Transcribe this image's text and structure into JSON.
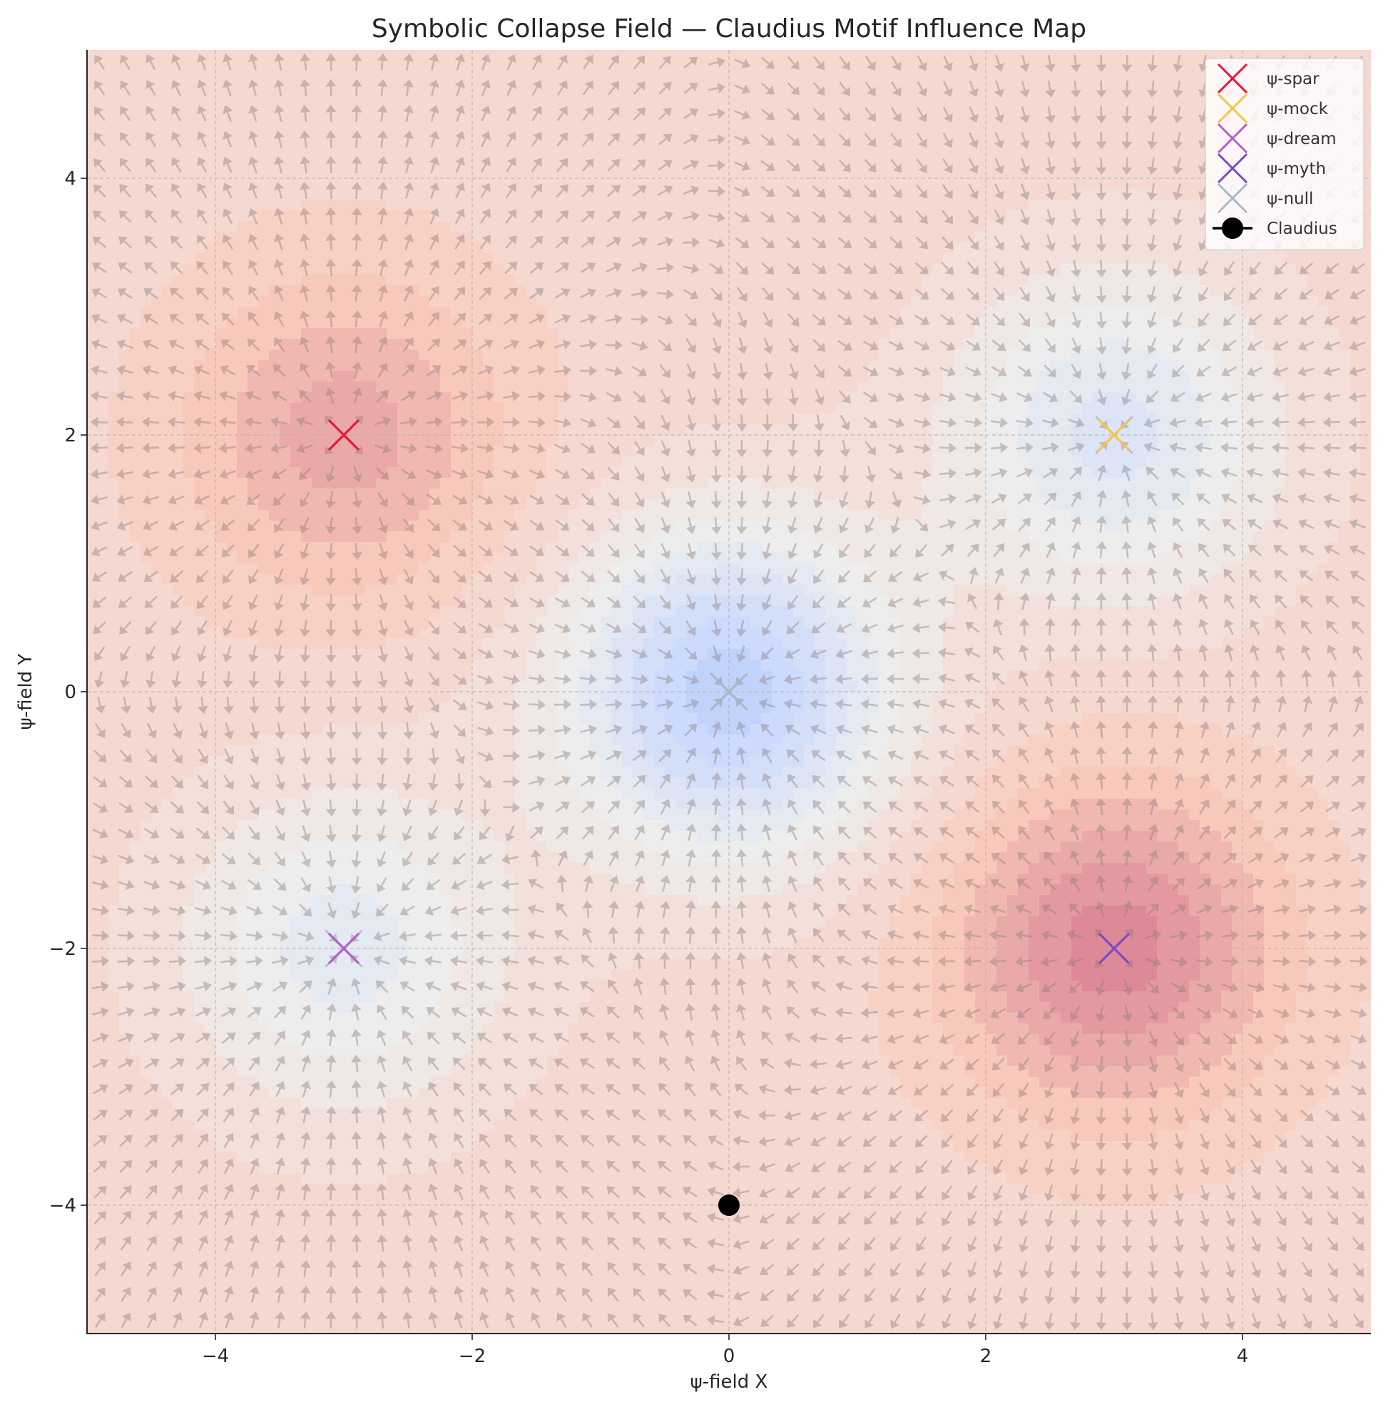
{
  "chart_data": {
    "type": "heatmap",
    "title": "Symbolic Collapse Field — Claudius Motif Influence Map",
    "xlabel": "ψ-field X",
    "ylabel": "ψ-field Y",
    "xlim": [
      -5,
      5
    ],
    "ylim": [
      -5,
      5
    ],
    "xticks": [
      -4,
      -2,
      0,
      2,
      4
    ],
    "yticks": [
      -4,
      -2,
      0,
      2,
      4
    ],
    "xtick_labels": [
      "−4",
      "−2",
      "0",
      "2",
      "4"
    ],
    "ytick_labels": [
      "−4",
      "−2",
      "0",
      "2",
      "4"
    ],
    "grid": true,
    "colormap": "coolwarm",
    "overlay": "quiver field of gradient arrows pointing toward motif centers",
    "legend_position": "top-right",
    "motifs": [
      {
        "name": "ψ-spar",
        "x": -3,
        "y": 2,
        "color": "#e8173b",
        "strength": 1.0,
        "marker": "x"
      },
      {
        "name": "ψ-mock",
        "x": 3,
        "y": 2,
        "color": "#f5c542",
        "strength": -1.2,
        "marker": "x"
      },
      {
        "name": "ψ-dream",
        "x": -3,
        "y": -2,
        "color": "#b25fcf",
        "strength": -1.0,
        "marker": "x"
      },
      {
        "name": "ψ-myth",
        "x": 3,
        "y": -2,
        "color": "#7b4bc4",
        "strength": 1.5,
        "marker": "x"
      },
      {
        "name": "ψ-null",
        "x": 0,
        "y": 0,
        "color": "#a8b8c6",
        "strength": -2.0,
        "marker": "x"
      }
    ],
    "agent": {
      "name": "Claudius",
      "x": 0,
      "y": -4,
      "color": "#000000",
      "marker": "o"
    }
  }
}
